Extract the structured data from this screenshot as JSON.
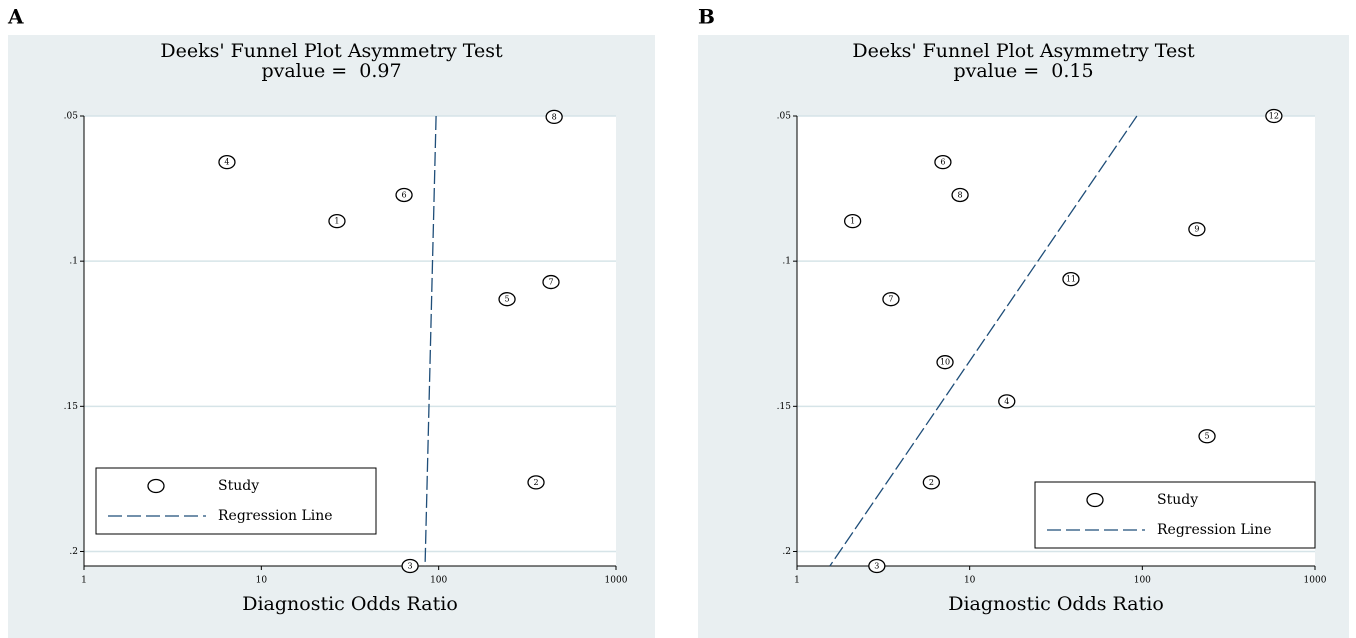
{
  "chart_data": [
    {
      "type": "scatter",
      "panel_label": "A",
      "title": "Deeks' Funnel Plot Asymmetry Test",
      "subtitle": "pvalue =  0.97",
      "xlabel": "Diagnostic Odds Ratio",
      "xscale": "log",
      "xlim": [
        1,
        1000
      ],
      "xticks": [
        1,
        10,
        100,
        1000
      ],
      "ylim": [
        0.05,
        0.205
      ],
      "y_inverted": true,
      "yticks": [
        {
          "value": 0.05,
          "label": ".05"
        },
        {
          "value": 0.1,
          "label": ".1"
        },
        {
          "value": 0.15,
          "label": ".15"
        },
        {
          "value": 0.2,
          "label": ".2"
        }
      ],
      "grid": true,
      "legend": "lower left",
      "series": [
        {
          "name": "Study",
          "style": "marker",
          "color": "#000000",
          "labels": [
            "4",
            "6",
            "1",
            "8",
            "7",
            "5",
            "2",
            "3"
          ],
          "x": [
            6.4,
            63.8,
            26.7,
            448,
            430,
            243,
            354,
            69
          ],
          "values": [
            0.0659,
            0.0772,
            0.0862,
            0.0503,
            0.1072,
            0.1131,
            0.1762,
            0.205
          ]
        },
        {
          "name": "Regression Line",
          "style": "dashed",
          "color": "#1f4e79",
          "x": [
            96.7,
            83.8
          ],
          "values": [
            0.05,
            0.205
          ]
        }
      ]
    },
    {
      "type": "scatter",
      "panel_label": "B",
      "title": "Deeks' Funnel Plot Asymmetry Test",
      "subtitle": "pvalue =  0.15",
      "xlabel": "Diagnostic Odds Ratio",
      "xscale": "log",
      "xlim": [
        1,
        1000
      ],
      "xticks": [
        1,
        10,
        100,
        1000
      ],
      "ylim": [
        0.05,
        0.205
      ],
      "y_inverted": true,
      "yticks": [
        {
          "value": 0.05,
          "label": ".05"
        },
        {
          "value": 0.1,
          "label": ".1"
        },
        {
          "value": 0.15,
          "label": ".15"
        },
        {
          "value": 0.2,
          "label": ".2"
        }
      ],
      "grid": true,
      "legend": "lower right",
      "series": [
        {
          "name": "Study",
          "style": "marker",
          "color": "#000000",
          "labels": [
            "12",
            "6",
            "8",
            "1",
            "9",
            "11",
            "7",
            "10",
            "4",
            "5",
            "2",
            "3"
          ],
          "x": [
            578,
            7.0,
            8.8,
            2.1,
            207,
            38.6,
            3.5,
            7.2,
            16.4,
            237,
            6.0,
            2.9
          ],
          "values": [
            0.05,
            0.0659,
            0.0772,
            0.0862,
            0.089,
            0.1062,
            0.1131,
            0.1348,
            0.1483,
            0.1603,
            0.1762,
            0.205
          ]
        },
        {
          "name": "Regression Line",
          "style": "dashed",
          "color": "#1f4e79",
          "x": [
            93,
            1.55
          ],
          "values": [
            0.05,
            0.205
          ]
        }
      ]
    }
  ]
}
